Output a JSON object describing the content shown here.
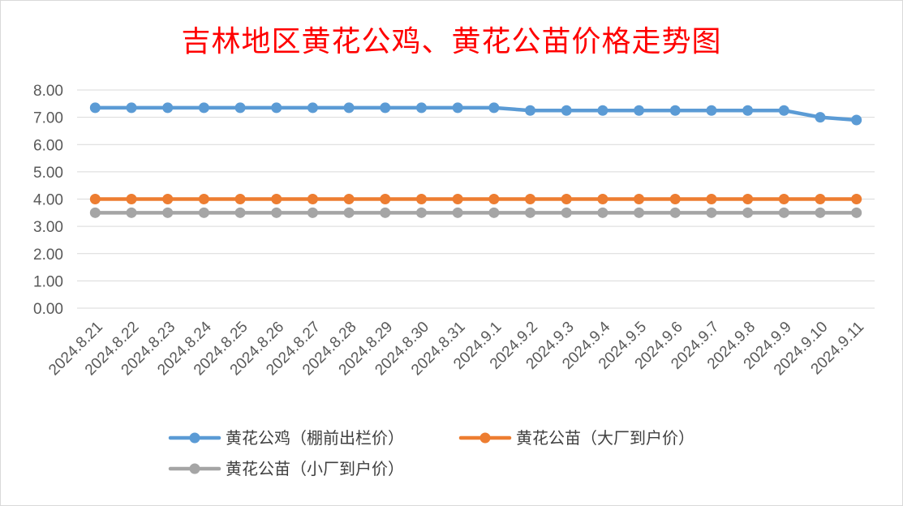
{
  "chart_data": {
    "type": "line",
    "title": "吉林地区黄花公鸡、黄花公苗价格走势图",
    "xlabel": "",
    "ylabel": "",
    "ylim": [
      0,
      8
    ],
    "y_tick_step": 1,
    "y_tick_labels": [
      "0.00",
      "1.00",
      "2.00",
      "3.00",
      "4.00",
      "5.00",
      "6.00",
      "7.00",
      "8.00"
    ],
    "grid": true,
    "legend_position": "bottom",
    "categories": [
      "2024.8.21",
      "2024.8.22",
      "2024.8.23",
      "2024.8.24",
      "2024.8.25",
      "2024.8.26",
      "2024.8.27",
      "2024.8.28",
      "2024.8.29",
      "2024.8.30",
      "2024.8.31",
      "2024.9.1",
      "2024.9.2",
      "2024.9.3",
      "2024.9.4",
      "2024.9.5",
      "2024.9.6",
      "2024.9.7",
      "2024.9.8",
      "2024.9.9",
      "2024.9.10",
      "2024.9.11"
    ],
    "series": [
      {
        "name": "黄花公鸡（棚前出栏价）",
        "color": "#5b9bd5",
        "values": [
          7.35,
          7.35,
          7.35,
          7.35,
          7.35,
          7.35,
          7.35,
          7.35,
          7.35,
          7.35,
          7.35,
          7.35,
          7.25,
          7.25,
          7.25,
          7.25,
          7.25,
          7.25,
          7.25,
          7.25,
          7.0,
          6.9
        ]
      },
      {
        "name": "黄花公苗（大厂到户价）",
        "color": "#ed7d31",
        "values": [
          4.0,
          4.0,
          4.0,
          4.0,
          4.0,
          4.0,
          4.0,
          4.0,
          4.0,
          4.0,
          4.0,
          4.0,
          4.0,
          4.0,
          4.0,
          4.0,
          4.0,
          4.0,
          4.0,
          4.0,
          4.0,
          4.0
        ]
      },
      {
        "name": "黄花公苗（小厂到户价）",
        "color": "#a5a5a5",
        "values": [
          3.5,
          3.5,
          3.5,
          3.5,
          3.5,
          3.5,
          3.5,
          3.5,
          3.5,
          3.5,
          3.5,
          3.5,
          3.5,
          3.5,
          3.5,
          3.5,
          3.5,
          3.5,
          3.5,
          3.5,
          3.5,
          3.5
        ]
      }
    ]
  }
}
